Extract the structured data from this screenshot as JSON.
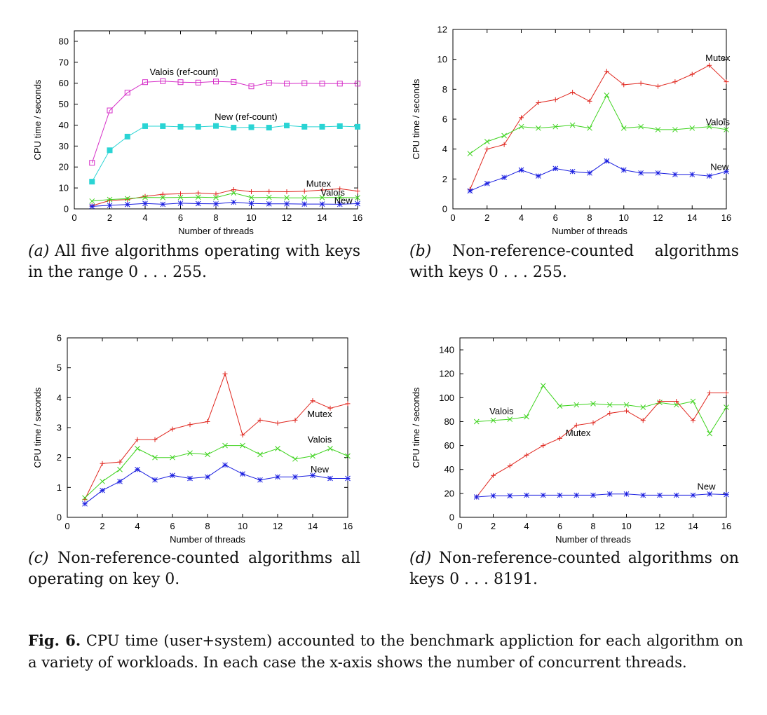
{
  "chart_data": [
    {
      "type": "line",
      "panel": "a",
      "ylabel": "CPU time / seconds",
      "xlabel": "Number of threads",
      "xlim": [
        0,
        16
      ],
      "ylim": [
        0,
        85
      ],
      "xticks": [
        0,
        2,
        4,
        6,
        8,
        10,
        12,
        14,
        16
      ],
      "yticks": [
        0,
        10,
        20,
        30,
        40,
        50,
        60,
        70,
        80
      ],
      "grid": false,
      "x": [
        1,
        2,
        3,
        4,
        5,
        6,
        7,
        8,
        9,
        10,
        11,
        12,
        13,
        14,
        15,
        16
      ],
      "series": [
        {
          "name": "Valois (ref-count)",
          "color": "#d62fc8",
          "marker": "square",
          "values": [
            22,
            47,
            55.5,
            60.5,
            61,
            60.5,
            60.3,
            60.8,
            60.6,
            58.5,
            60.2,
            59.8,
            60,
            59.8,
            59.8,
            59.8
          ]
        },
        {
          "name": "New (ref-count)",
          "color": "#2ad4d4",
          "marker": "filled-square",
          "values": [
            13,
            28,
            34.5,
            39.5,
            39.5,
            39.2,
            39.2,
            39.6,
            38.8,
            39,
            38.8,
            39.8,
            39.2,
            39.2,
            39.5,
            39.2
          ]
        },
        {
          "name": "Mutex",
          "color": "#e0271f",
          "marker": "plus",
          "values": [
            1.5,
            4,
            4.5,
            6,
            7,
            7.2,
            7.6,
            7.1,
            9.2,
            8.2,
            8.3,
            8.2,
            8.4,
            9,
            9.6,
            8.5
          ]
        },
        {
          "name": "Valois",
          "color": "#3ed31e",
          "marker": "x",
          "values": [
            3.7,
            4.5,
            4.9,
            5.5,
            5.4,
            5.5,
            5.6,
            5.4,
            7.6,
            5.4,
            5.5,
            5.3,
            5.3,
            5.4,
            5.5,
            5.3
          ]
        },
        {
          "name": "New",
          "color": "#1a1ee0",
          "marker": "star",
          "values": [
            1.2,
            1.7,
            2.1,
            2.6,
            2.2,
            2.7,
            2.5,
            2.4,
            3.2,
            2.6,
            2.4,
            2.4,
            2.3,
            2.3,
            2.2,
            2.5
          ]
        }
      ],
      "labels": [
        {
          "text": "Valois (ref-count)",
          "x": 6.2,
          "y": 64
        },
        {
          "text": "New (ref-count)",
          "x": 9.7,
          "y": 42.5
        },
        {
          "text": "Mutex",
          "x": 13.8,
          "y": 10.5
        },
        {
          "text": "Valois",
          "x": 14.6,
          "y": 6.3
        },
        {
          "text": "New",
          "x": 15.2,
          "y": 2.5
        }
      ]
    },
    {
      "type": "line",
      "panel": "b",
      "ylabel": "CPU time / seconds",
      "xlabel": "Number of threads",
      "xlim": [
        0,
        16
      ],
      "ylim": [
        0,
        12
      ],
      "xticks": [
        0,
        2,
        4,
        6,
        8,
        10,
        12,
        14,
        16
      ],
      "yticks": [
        0,
        2,
        4,
        6,
        8,
        10,
        12
      ],
      "grid": false,
      "x": [
        1,
        2,
        3,
        4,
        5,
        6,
        7,
        8,
        9,
        10,
        11,
        12,
        13,
        14,
        15,
        16
      ],
      "series": [
        {
          "name": "Mutex",
          "color": "#e0271f",
          "marker": "plus",
          "values": [
            1.3,
            4,
            4.3,
            6.1,
            7.1,
            7.3,
            7.8,
            7.2,
            9.2,
            8.3,
            8.4,
            8.2,
            8.5,
            9,
            9.6,
            8.5
          ]
        },
        {
          "name": "Valois",
          "color": "#3ed31e",
          "marker": "x",
          "values": [
            3.7,
            4.5,
            4.9,
            5.5,
            5.4,
            5.5,
            5.6,
            5.4,
            7.6,
            5.4,
            5.5,
            5.3,
            5.3,
            5.4,
            5.5,
            5.3
          ]
        },
        {
          "name": "New",
          "color": "#1a1ee0",
          "marker": "star",
          "values": [
            1.2,
            1.7,
            2.1,
            2.6,
            2.2,
            2.7,
            2.5,
            2.4,
            3.2,
            2.6,
            2.4,
            2.4,
            2.3,
            2.3,
            2.2,
            2.5
          ]
        }
      ],
      "labels": [
        {
          "text": "Mutex",
          "x": 15.5,
          "y": 9.9
        },
        {
          "text": "Valois",
          "x": 15.5,
          "y": 5.6
        },
        {
          "text": "New",
          "x": 15.6,
          "y": 2.6
        }
      ]
    },
    {
      "type": "line",
      "panel": "c",
      "ylabel": "CPU time / seconds",
      "xlabel": "Number of threads",
      "xlim": [
        0,
        16
      ],
      "ylim": [
        0,
        6
      ],
      "xticks": [
        0,
        2,
        4,
        6,
        8,
        10,
        12,
        14,
        16
      ],
      "yticks": [
        0,
        1,
        2,
        3,
        4,
        5,
        6
      ],
      "grid": false,
      "x": [
        1,
        2,
        3,
        4,
        5,
        6,
        7,
        8,
        9,
        10,
        11,
        12,
        13,
        14,
        15,
        16
      ],
      "series": [
        {
          "name": "Mutex",
          "color": "#e0271f",
          "marker": "plus",
          "values": [
            0.6,
            1.8,
            1.85,
            2.6,
            2.6,
            2.95,
            3.1,
            3.2,
            4.8,
            2.75,
            3.25,
            3.15,
            3.25,
            3.9,
            3.65,
            3.8
          ]
        },
        {
          "name": "Valois",
          "color": "#3ed31e",
          "marker": "x",
          "values": [
            0.65,
            1.2,
            1.6,
            2.3,
            2,
            2,
            2.15,
            2.1,
            2.4,
            2.4,
            2.1,
            2.3,
            1.95,
            2.05,
            2.3,
            2.05
          ]
        },
        {
          "name": "New",
          "color": "#1a1ee0",
          "marker": "star",
          "values": [
            0.45,
            0.9,
            1.2,
            1.6,
            1.25,
            1.4,
            1.3,
            1.35,
            1.75,
            1.45,
            1.25,
            1.35,
            1.35,
            1.4,
            1.3,
            1.3
          ]
        }
      ],
      "labels": [
        {
          "text": "Mutex",
          "x": 14.4,
          "y": 3.35
        },
        {
          "text": "Valois",
          "x": 14.4,
          "y": 2.5
        },
        {
          "text": "New",
          "x": 14.4,
          "y": 1.5
        }
      ]
    },
    {
      "type": "line",
      "panel": "d",
      "ylabel": "CPU time / seconds",
      "xlabel": "Number of threads",
      "xlim": [
        0,
        16
      ],
      "ylim": [
        0,
        150
      ],
      "xticks": [
        0,
        2,
        4,
        6,
        8,
        10,
        12,
        14,
        16
      ],
      "yticks": [
        0,
        20,
        40,
        60,
        80,
        100,
        120,
        140
      ],
      "grid": false,
      "x": [
        1,
        2,
        3,
        4,
        5,
        6,
        7,
        8,
        9,
        10,
        11,
        12,
        13,
        14,
        15,
        16
      ],
      "series": [
        {
          "name": "Valois",
          "color": "#3ed31e",
          "marker": "x",
          "values": [
            80,
            81,
            82,
            84,
            110,
            93,
            94,
            95,
            94,
            94,
            92,
            96,
            94,
            97,
            70,
            92
          ]
        },
        {
          "name": "Mutex",
          "color": "#e0271f",
          "marker": "plus",
          "values": [
            17,
            35,
            43,
            52,
            60,
            66,
            77,
            79,
            87,
            89,
            81,
            97,
            97,
            81,
            104,
            104
          ]
        },
        {
          "name": "New",
          "color": "#1a1ee0",
          "marker": "star",
          "values": [
            17,
            18,
            18,
            18.5,
            18.5,
            18.5,
            18.5,
            18.5,
            19.5,
            19.5,
            18.5,
            18.5,
            18.5,
            18.5,
            19.5,
            19
          ]
        }
      ],
      "labels": [
        {
          "text": "Valois",
          "x": 2.5,
          "y": 86
        },
        {
          "text": "Mutex",
          "x": 7.1,
          "y": 68
        },
        {
          "text": "New",
          "x": 14.8,
          "y": 23
        }
      ]
    }
  ],
  "captions": {
    "a": {
      "tag": "(a)",
      "text": "All five algorithms operating with keys in the range 0 . . . 255."
    },
    "b": {
      "tag": "(b)",
      "text": "Non-reference-counted algorithms with keys 0 . . . 255."
    },
    "c": {
      "tag": "(c)",
      "text": "Non-reference-counted algorithms all operating on key 0."
    },
    "d": {
      "tag": "(d)",
      "text": "Non-reference-counted algorithms on keys 0 . . . 8191."
    }
  },
  "figure": {
    "label": "Fig. 6.",
    "text": "CPU time (user+system) accounted to the benchmark appliction for each algorithm on a variety of workloads. In each case the x-axis shows the number of concurrent threads."
  }
}
